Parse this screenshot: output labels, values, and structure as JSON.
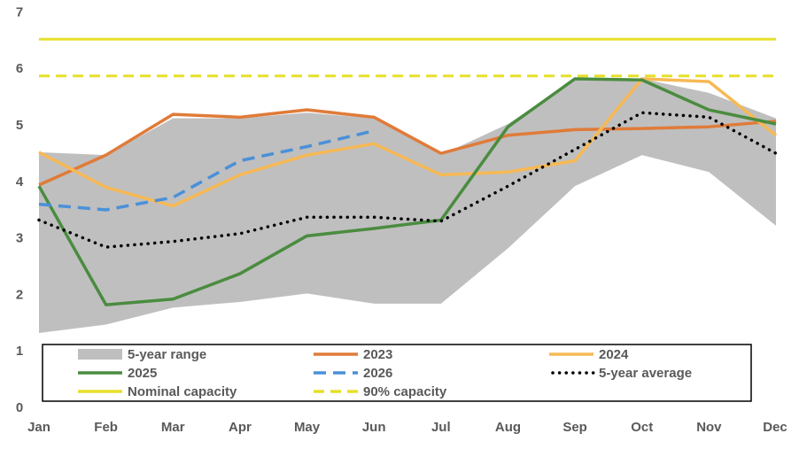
{
  "chart_data": {
    "type": "line",
    "title": "",
    "xlabel": "",
    "ylabel": "",
    "ylim": [
      0,
      7
    ],
    "yticks": [
      0,
      1,
      2,
      3,
      4,
      5,
      6,
      7
    ],
    "categories": [
      "Jan",
      "Feb",
      "Mar",
      "Apr",
      "May",
      "Jun",
      "Jul",
      "Aug",
      "Sep",
      "Oct",
      "Nov",
      "Dec"
    ],
    "grid": false,
    "legend_position": "bottom-inside",
    "range": {
      "name": "5-year range",
      "color": "#bfbfbf",
      "low": [
        1.3,
        1.45,
        1.75,
        1.85,
        2.0,
        1.82,
        1.82,
        2.8,
        3.9,
        4.45,
        4.15,
        3.2
      ],
      "high": [
        4.5,
        4.45,
        5.1,
        5.1,
        5.2,
        5.1,
        4.45,
        5.0,
        5.8,
        5.8,
        5.55,
        5.1
      ]
    },
    "series": [
      {
        "name": "2023",
        "color": "#e07b39",
        "style": "solid",
        "values": [
          3.92,
          4.45,
          5.17,
          5.12,
          5.25,
          5.12,
          4.48,
          4.8,
          4.9,
          4.92,
          4.95,
          5.05
        ]
      },
      {
        "name": "2024",
        "color": "#f7b955",
        "style": "solid",
        "values": [
          4.5,
          3.88,
          3.55,
          4.1,
          4.45,
          4.65,
          4.1,
          4.15,
          4.35,
          5.8,
          5.75,
          4.8
        ]
      },
      {
        "name": "2025",
        "color": "#4a8c3f",
        "style": "solid",
        "values": [
          3.9,
          1.8,
          1.9,
          2.35,
          3.02,
          3.15,
          3.3,
          4.95,
          5.8,
          5.78,
          5.25,
          5.0
        ]
      },
      {
        "name": "2026",
        "color": "#4a90d9",
        "style": "dashed",
        "values": [
          3.58,
          3.48,
          3.7,
          4.35,
          4.6,
          4.88,
          null,
          null,
          null,
          null,
          null,
          null
        ]
      },
      {
        "name": "5-year average",
        "color": "#000000",
        "style": "dotted",
        "values": [
          3.3,
          2.82,
          2.92,
          3.06,
          3.35,
          3.35,
          3.28,
          3.9,
          4.55,
          5.2,
          5.12,
          4.48
        ]
      }
    ],
    "reference_lines": [
      {
        "name": "Nominal capacity",
        "value": 6.5,
        "color": "#e5e02a",
        "style": "solid"
      },
      {
        "name": "90% capacity",
        "value": 5.85,
        "color": "#e5e02a",
        "style": "dashed"
      }
    ],
    "legend_order": [
      "5-year range",
      "2023",
      "2024",
      "2025",
      "2026",
      "5-year average",
      "Nominal capacity",
      "90% capacity"
    ]
  }
}
